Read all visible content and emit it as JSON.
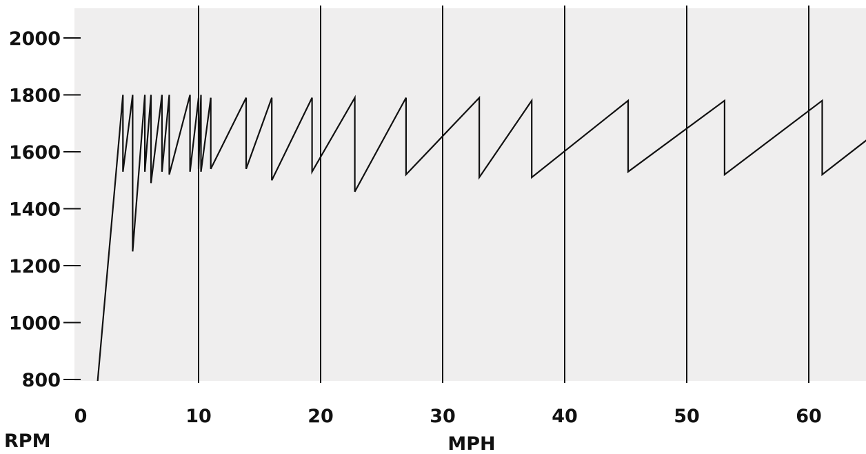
{
  "chart_data": {
    "type": "line",
    "xlabel": "MPH",
    "ylabel": "RPM",
    "xlim": [
      0,
      65
    ],
    "ylim": [
      780,
      2150
    ],
    "x_ticks": [
      0,
      10,
      20,
      30,
      40,
      50,
      60
    ],
    "y_ticks": [
      800,
      1000,
      1200,
      1400,
      1600,
      1800,
      2000
    ],
    "x_tick_labels": [
      "0",
      "10",
      "20",
      "30",
      "40",
      "50",
      "60"
    ],
    "y_tick_labels": [
      "800",
      "1000",
      "1200",
      "1400",
      "1600",
      "1800",
      "2000"
    ],
    "grid": {
      "vertical": true,
      "horizontal": false
    },
    "colors": {
      "background": "#efeeee",
      "line": "#111111",
      "grid": "#111111",
      "text": "#111111"
    },
    "series": [
      {
        "x": [
          1.7,
          3.8,
          3.8,
          4.6,
          4.6,
          5.6,
          5.6,
          6.1,
          6.1,
          7.0,
          7.0,
          7.6,
          7.6,
          9.3,
          9.3,
          10.0,
          10.0,
          10.2,
          10.2,
          11.0,
          11.0,
          13.9,
          13.9,
          16.0,
          16.0,
          19.3,
          19.3,
          22.8,
          22.8,
          27.0,
          27.0,
          33.0,
          33.0,
          37.3,
          37.3,
          45.2,
          45.2,
          53.1,
          53.1,
          61.1,
          61.1,
          65.0
        ],
        "y": [
          780,
          1800,
          1530,
          1800,
          1250,
          1800,
          1530,
          1800,
          1490,
          1800,
          1530,
          1800,
          1520,
          1800,
          1530,
          1790,
          1540,
          1800,
          1530,
          1790,
          1540,
          1790,
          1540,
          1790,
          1500,
          1790,
          1530,
          1790,
          1460,
          1790,
          1520,
          1790,
          1510,
          1780,
          1510,
          1780,
          1530,
          1780,
          1520,
          1780,
          1520,
          1650
        ]
      }
    ]
  }
}
